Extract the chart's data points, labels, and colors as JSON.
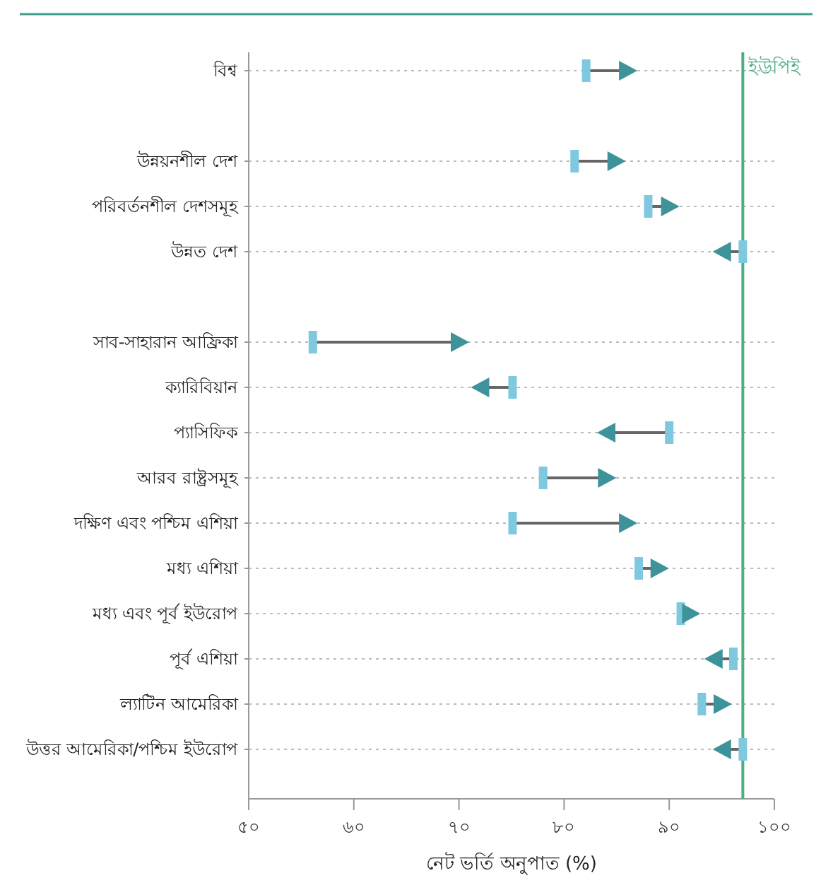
{
  "chart_data": {
    "type": "scatter",
    "categories": [
      "বিশ্ব",
      null,
      "উন্নয়নশীল দেশ",
      "পরিবর্তনশীল দেশসমূহ",
      "উন্নত দেশ",
      null,
      "সাব-সাহারান আফ্রিকা",
      "ক্যারিবিয়ান",
      "প্যাসিফিক",
      "আরব রাষ্ট্রসমূহ",
      "দক্ষিণ এবং পশ্চিম এশিয়া",
      "মধ্য এশিয়া",
      "মধ্য এবং পূর্ব ইউরোপ",
      "পূর্ব এশিয়া",
      "ল্যাটিন আমেরিকা",
      "উত্তর আমেরিকা/পশ্চিম ইউরোপ"
    ],
    "series": [
      {
        "color": "#7ec8e0",
        "marker": "square",
        "values": [
          82.1,
          null,
          81.0,
          88.0,
          97.0,
          null,
          56.1,
          75.1,
          90.0,
          78.0,
          75.1,
          87.1,
          91.1,
          96.1,
          93.1,
          97.0
        ]
      },
      {
        "color": "#3d9399",
        "marker": "triangle",
        "values": [
          85.8,
          null,
          84.7,
          89.8,
          95.3,
          null,
          69.8,
          72.3,
          84.3,
          83.8,
          85.8,
          88.8,
          91.8,
          94.5,
          94.8,
          95.3
        ]
      }
    ],
    "orientation": "horizontal",
    "xlabel": "নেট ভর্তি অনুপাত (%)",
    "xlim": [
      50,
      100
    ],
    "xticks": [
      {
        "value": 50,
        "label": "৫০"
      },
      {
        "value": 60,
        "label": "৬০"
      },
      {
        "value": 70,
        "label": "৭০"
      },
      {
        "value": 80,
        "label": "৮০"
      },
      {
        "value": 90,
        "label": "৯০"
      },
      {
        "value": 100,
        "label": "১০০"
      }
    ],
    "ref_lines": [
      {
        "axis": "x",
        "value": 97,
        "label": "ইউপিই",
        "color": "#4caf84"
      }
    ],
    "grid": "y"
  }
}
